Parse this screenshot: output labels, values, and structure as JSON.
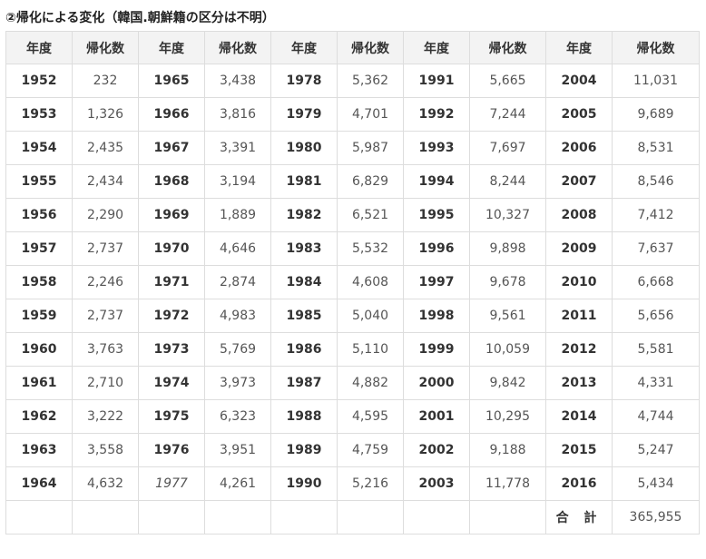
{
  "title": "②帰化による変化（韓国.朝鮮籍の区分は不明）",
  "headers": [
    "年度",
    "帰化数",
    "年度",
    "帰化数",
    "年度",
    "帰化数",
    "年度",
    "帰化数",
    "年度",
    "帰化数"
  ],
  "rows": [
    [
      "1952",
      "232",
      "1965",
      "3,438",
      "1978",
      "5,362",
      "1991",
      "5,665",
      "2004",
      "11,031"
    ],
    [
      "1953",
      "1,326",
      "1966",
      "3,816",
      "1979",
      "4,701",
      "1992",
      "7,244",
      "2005",
      "9,689"
    ],
    [
      "1954",
      "2,435",
      "1967",
      "3,391",
      "1980",
      "5,987",
      "1993",
      "7,697",
      "2006",
      "8,531"
    ],
    [
      "1955",
      "2,434",
      "1968",
      "3,194",
      "1981",
      "6,829",
      "1994",
      "8,244",
      "2007",
      "8,546"
    ],
    [
      "1956",
      "2,290",
      "1969",
      "1,889",
      "1982",
      "6,521",
      "1995",
      "10,327",
      "2008",
      "7,412"
    ],
    [
      "1957",
      "2,737",
      "1970",
      "4,646",
      "1983",
      "5,532",
      "1996",
      "9,898",
      "2009",
      "7,637"
    ],
    [
      "1958",
      "2,246",
      "1971",
      "2,874",
      "1984",
      "4,608",
      "1997",
      "9,678",
      "2010",
      "6,668"
    ],
    [
      "1959",
      "2,737",
      "1972",
      "4,983",
      "1985",
      "5,040",
      "1998",
      "9,561",
      "2011",
      "5,656"
    ],
    [
      "1960",
      "3,763",
      "1973",
      "5,769",
      "1986",
      "5,110",
      "1999",
      "10,059",
      "2012",
      "5,581"
    ],
    [
      "1961",
      "2,710",
      "1974",
      "3,973",
      "1987",
      "4,882",
      "2000",
      "9,842",
      "2013",
      "4,331"
    ],
    [
      "1962",
      "3,222",
      "1975",
      "6,323",
      "1988",
      "4,595",
      "2001",
      "10,295",
      "2014",
      "4,744"
    ],
    [
      "1963",
      "3,558",
      "1976",
      "3,951",
      "1989",
      "4,759",
      "2002",
      "9,188",
      "2015",
      "5,247"
    ],
    [
      "1964",
      "4,632",
      "1977",
      "4,261",
      "1990",
      "5,216",
      "2003",
      "11,778",
      "2016",
      "5,434"
    ]
  ],
  "italic_year_cells": [
    [
      12,
      2
    ]
  ],
  "total": {
    "label": "合 計",
    "value": "365,955"
  }
}
